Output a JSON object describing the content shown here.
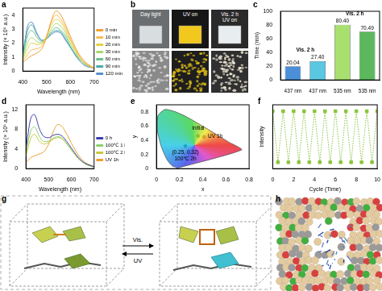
{
  "chart_data": [
    {
      "panel": "a",
      "type": "line",
      "x": [
        400,
        420,
        437,
        460,
        480,
        500,
        520,
        540,
        560,
        580,
        600,
        630,
        660,
        700
      ],
      "series": [
        {
          "name": "0 min",
          "color": "#f0a030",
          "values": [
            0.6,
            0.9,
            1.1,
            1.3,
            1.6,
            2.4,
            3.6,
            4.3,
            4.0,
            3.3,
            2.5,
            1.4,
            0.7,
            0.2
          ]
        },
        {
          "name": "10 min",
          "color": "#f5bc55",
          "values": [
            0.7,
            1.2,
            1.5,
            1.6,
            1.8,
            2.5,
            3.5,
            4.0,
            3.7,
            3.1,
            2.3,
            1.3,
            0.6,
            0.2
          ]
        },
        {
          "name": "20 min",
          "color": "#e3d244",
          "values": [
            0.8,
            1.6,
            2.0,
            1.9,
            2.0,
            2.5,
            3.3,
            3.7,
            3.5,
            2.9,
            2.2,
            1.2,
            0.6,
            0.2
          ]
        },
        {
          "name": "30 min",
          "color": "#a8d86a",
          "values": [
            0.9,
            2.0,
            2.4,
            2.1,
            2.0,
            2.4,
            3.0,
            3.4,
            3.2,
            2.7,
            2.0,
            1.1,
            0.5,
            0.2
          ]
        },
        {
          "name": "60 min",
          "color": "#6cc08a",
          "values": [
            1.0,
            2.5,
            2.9,
            2.4,
            2.1,
            2.3,
            2.8,
            3.1,
            2.9,
            2.5,
            1.8,
            1.0,
            0.5,
            0.2
          ]
        },
        {
          "name": "90 min",
          "color": "#4aa8a8",
          "values": [
            1.1,
            2.9,
            3.3,
            2.6,
            2.2,
            2.3,
            2.7,
            2.9,
            2.8,
            2.3,
            1.7,
            1.0,
            0.5,
            0.2
          ]
        },
        {
          "name": "120 min",
          "color": "#5a8fc8",
          "values": [
            1.2,
            3.2,
            3.5,
            2.7,
            2.2,
            2.3,
            2.6,
            2.8,
            2.7,
            2.2,
            1.7,
            0.9,
            0.4,
            0.2
          ]
        }
      ],
      "x_label": "Wavelength (nm)",
      "y_label": "Intensity (× 10⁶ a.u.)",
      "xlim": [
        400,
        700
      ],
      "xticks": [
        400,
        500,
        600,
        700
      ],
      "ylim": [
        0,
        4.5
      ],
      "yticks": [
        0,
        1,
        2,
        3,
        4
      ],
      "grid": false,
      "legend": "right"
    },
    {
      "panel": "c",
      "type": "bar",
      "categories": [
        "437 nm",
        "437 nm",
        "535 nm",
        "535 nm"
      ],
      "values": [
        20.04,
        27.4,
        80.4,
        70.49
      ],
      "value_labels": [
        "20.04",
        "27.40",
        "80.40",
        "70.49"
      ],
      "colors": [
        "#4a8fd8",
        "#5ac8e0",
        "#a8e070",
        "#5cb85c"
      ],
      "y_label": "Time (min)",
      "ylim": [
        0,
        100
      ],
      "yticks": [
        0,
        20,
        40,
        60,
        80,
        100
      ],
      "data_labels": true,
      "grid": false,
      "annotations": [
        "Vis. 2 h",
        "Vis. 2 h"
      ]
    },
    {
      "panel": "d",
      "type": "line",
      "x": [
        400,
        420,
        437,
        460,
        480,
        500,
        520,
        540,
        560,
        580,
        600,
        630,
        660,
        700
      ],
      "series": [
        {
          "name": "0 h",
          "color": "#3a3fb0",
          "values": [
            4.0,
            10.0,
            11.0,
            8.0,
            6.5,
            6.3,
            6.8,
            7.0,
            6.6,
            5.5,
            4.2,
            2.3,
            1.1,
            0.4
          ]
        },
        {
          "name": "100℃ 1 h",
          "color": "#8ad06a",
          "values": [
            3.0,
            7.5,
            8.5,
            6.5,
            5.5,
            5.6,
            6.2,
            6.5,
            6.2,
            5.1,
            3.9,
            2.1,
            1.0,
            0.3
          ]
        },
        {
          "name": "100℃ 2 h",
          "color": "#c8c83a",
          "values": [
            2.5,
            6.0,
            7.0,
            5.5,
            5.0,
            5.3,
            6.0,
            6.3,
            6.0,
            5.0,
            3.8,
            2.1,
            1.0,
            0.3
          ]
        },
        {
          "name": "UV 1h",
          "color": "#f0a030",
          "values": [
            1.2,
            2.2,
            2.6,
            3.0,
            3.5,
            5.0,
            7.5,
            9.0,
            8.5,
            7.0,
            5.2,
            2.8,
            1.3,
            0.4
          ]
        }
      ],
      "x_label": "Wavelength (nm)",
      "y_label": "Intensity (× 10⁶ a.u.)",
      "xlim": [
        400,
        700
      ],
      "xticks": [
        400,
        500,
        600,
        700
      ],
      "ylim": [
        0,
        13
      ],
      "yticks": [
        0,
        4,
        8,
        12
      ],
      "grid": false,
      "legend": "right"
    },
    {
      "panel": "e",
      "type": "scatter",
      "x": [
        0.36,
        0.41,
        0.25
      ],
      "values": [
        0.46,
        0.45,
        0.32
      ],
      "point_labels": [
        "Initial",
        "UV 1h",
        [
          "(0.25, 0.32)",
          "100℃ 2h"
        ]
      ],
      "color": "#000000",
      "locus": {
        "x": [
          0.175,
          0.17,
          0.144,
          0.124,
          0.09,
          0.045,
          0.008,
          0.014,
          0.074,
          0.155,
          0.23,
          0.302,
          0.373,
          0.444,
          0.513,
          0.575,
          0.627,
          0.735,
          0.175
        ],
        "y": [
          0.005,
          0.02,
          0.03,
          0.058,
          0.13,
          0.295,
          0.538,
          0.75,
          0.834,
          0.806,
          0.754,
          0.692,
          0.624,
          0.555,
          0.487,
          0.424,
          0.372,
          0.265,
          0.005
        ]
      },
      "x_label": "x",
      "y_label": "y",
      "xlim": [
        0,
        0.8
      ],
      "xticks": [
        0,
        0.2,
        0.4,
        0.6,
        0.8
      ],
      "ylim": [
        0,
        0.9
      ],
      "yticks": [
        0,
        0.2,
        0.4,
        0.6,
        0.8
      ],
      "grid": false
    },
    {
      "panel": "f",
      "type": "line",
      "x": [
        0,
        0.5,
        1,
        1.5,
        2,
        2.5,
        3,
        3.5,
        4,
        4.5,
        5,
        5.5,
        6,
        6.5,
        7,
        7.5,
        8,
        8.5,
        9,
        9.5,
        10
      ],
      "series": [
        {
          "color": "#8cc43c",
          "marker": "square",
          "line_style": "dotted",
          "values": [
            0.9,
            0.1,
            0.9,
            0.1,
            0.9,
            0.1,
            0.9,
            0.1,
            0.9,
            0.1,
            0.9,
            0.1,
            0.9,
            0.1,
            0.9,
            0.1,
            0.9,
            0.1,
            0.9,
            0.1,
            0.9
          ]
        }
      ],
      "x_label": "Cycle (Time)",
      "y_label": "Intensity",
      "xlim": [
        0,
        10
      ],
      "xticks": [
        0,
        2,
        4,
        6,
        8,
        10
      ],
      "ylim": [
        0,
        1
      ],
      "tick_labels": "x",
      "grid": false
    }
  ],
  "figure_panels": [
    {
      "panel": "b",
      "captions": [
        "Day light",
        "UV on",
        [
          "Vis. 2 h",
          "UV on"
        ]
      ]
    },
    {
      "panel": "g",
      "arrow_labels": [
        "Vis.",
        "UV"
      ]
    },
    {
      "panel": "h"
    }
  ]
}
